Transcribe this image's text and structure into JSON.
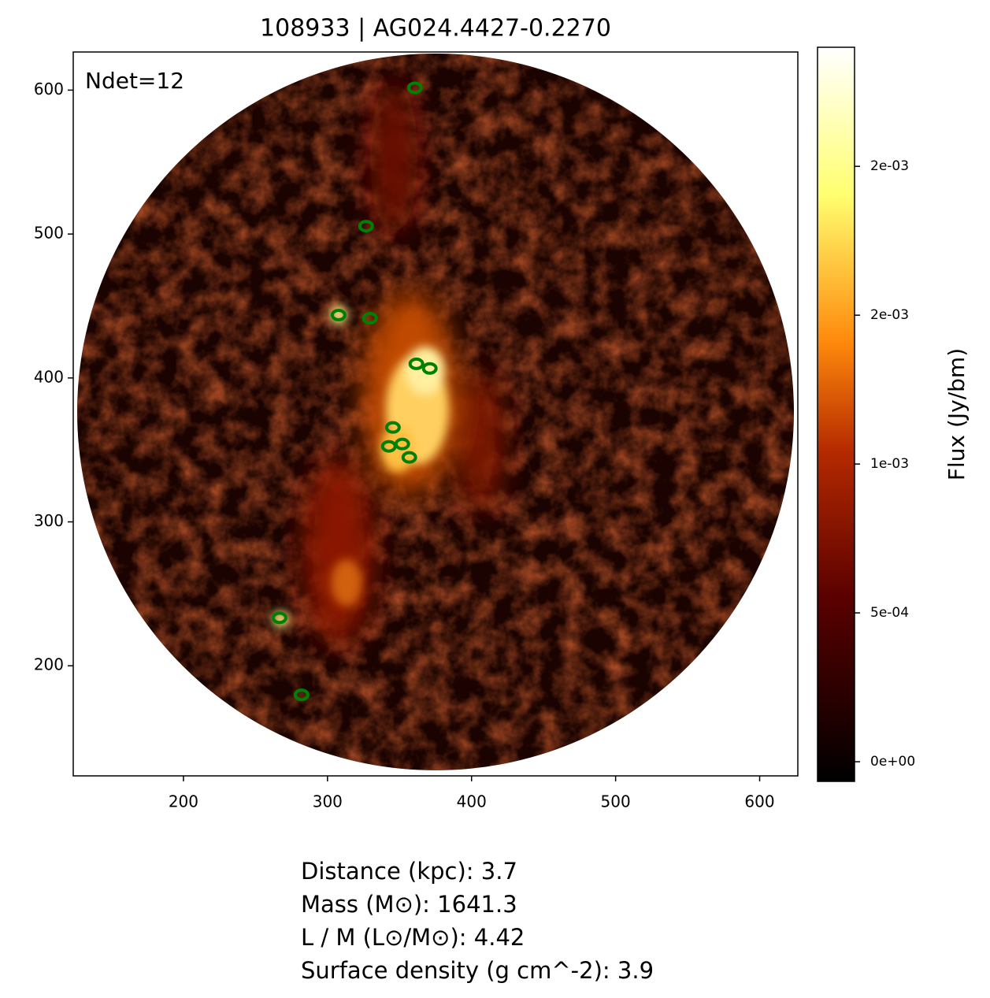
{
  "chart_data": {
    "type": "image",
    "title": "108933 | AG024.4427-0.2270",
    "annotation": "Ndet=12",
    "colorbar_label": "Flux (Jy/bm)",
    "colormap": "afmhot",
    "clim": [
      -6.6e-05,
      0.0024
    ],
    "cticks": [
      {
        "value": 0,
        "label": "0e+00"
      },
      {
        "value": 0.0005,
        "label": "5e-04"
      },
      {
        "value": 0.001,
        "label": "1e-03"
      },
      {
        "value": 0.0015,
        "label": "2e-03"
      },
      {
        "value": 0.002,
        "label": "2e-03"
      }
    ],
    "xlim": [
      123.5,
      626.5
    ],
    "ylim": [
      123.5,
      626.5
    ],
    "xticks": [
      200,
      300,
      400,
      500,
      600
    ],
    "yticks": [
      200,
      300,
      400,
      500,
      600
    ],
    "marker_color": "#008000",
    "sources": {
      "x": [
        360.7,
        326.8,
        307.7,
        329.5,
        361.7,
        371.0,
        345.4,
        342.6,
        351.9,
        356.8,
        266.7,
        282.0
      ],
      "y": [
        601.6,
        505.5,
        443.7,
        441.5,
        409.8,
        406.6,
        365.6,
        352.5,
        354.1,
        344.8,
        233.3,
        179.8
      ]
    },
    "info": [
      {
        "label": "Distance (kpc):",
        "value": 3.7
      },
      {
        "label": "Mass (M⊙):",
        "value": 1641.3
      },
      {
        "label": "L / M (L⊙/M⊙):",
        "value": 4.42
      },
      {
        "label": "Surface density (g cm^-2):",
        "value": 3.9
      }
    ]
  }
}
